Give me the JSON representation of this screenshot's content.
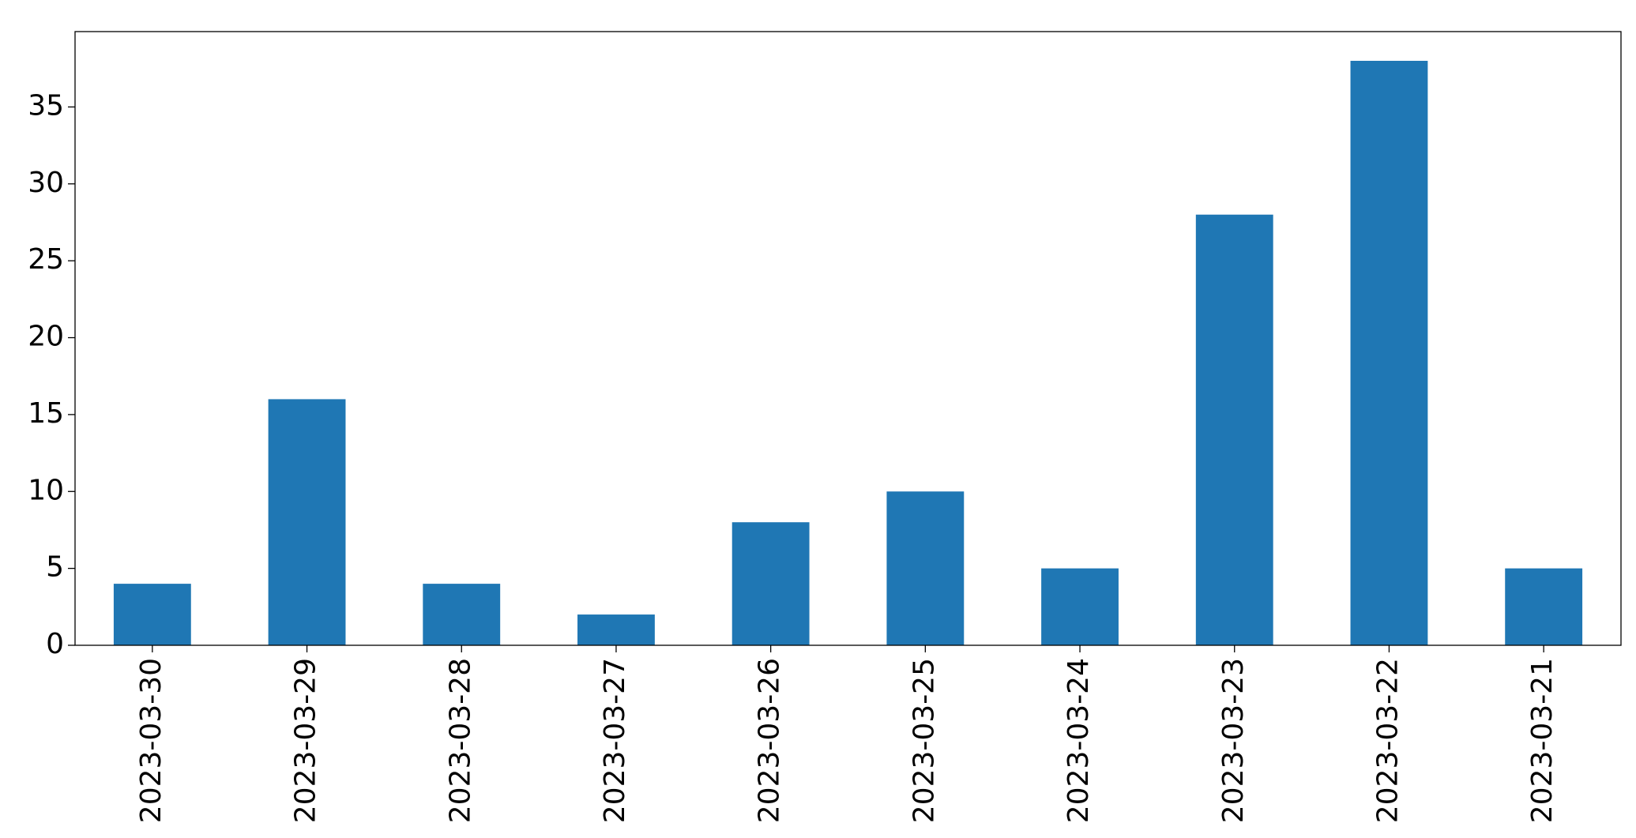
{
  "chart_data": {
    "type": "bar",
    "categories": [
      "2023-03-30",
      "2023-03-29",
      "2023-03-28",
      "2023-03-27",
      "2023-03-26",
      "2023-03-25",
      "2023-03-24",
      "2023-03-23",
      "2023-03-22",
      "2023-03-21"
    ],
    "values": [
      4,
      16,
      4,
      2,
      8,
      10,
      5,
      28,
      38,
      5
    ],
    "color": "#1f77b4",
    "ylim": [
      0,
      39.9
    ],
    "yticks": [
      0,
      5,
      10,
      15,
      20,
      25,
      30,
      35
    ],
    "grid": false
  }
}
